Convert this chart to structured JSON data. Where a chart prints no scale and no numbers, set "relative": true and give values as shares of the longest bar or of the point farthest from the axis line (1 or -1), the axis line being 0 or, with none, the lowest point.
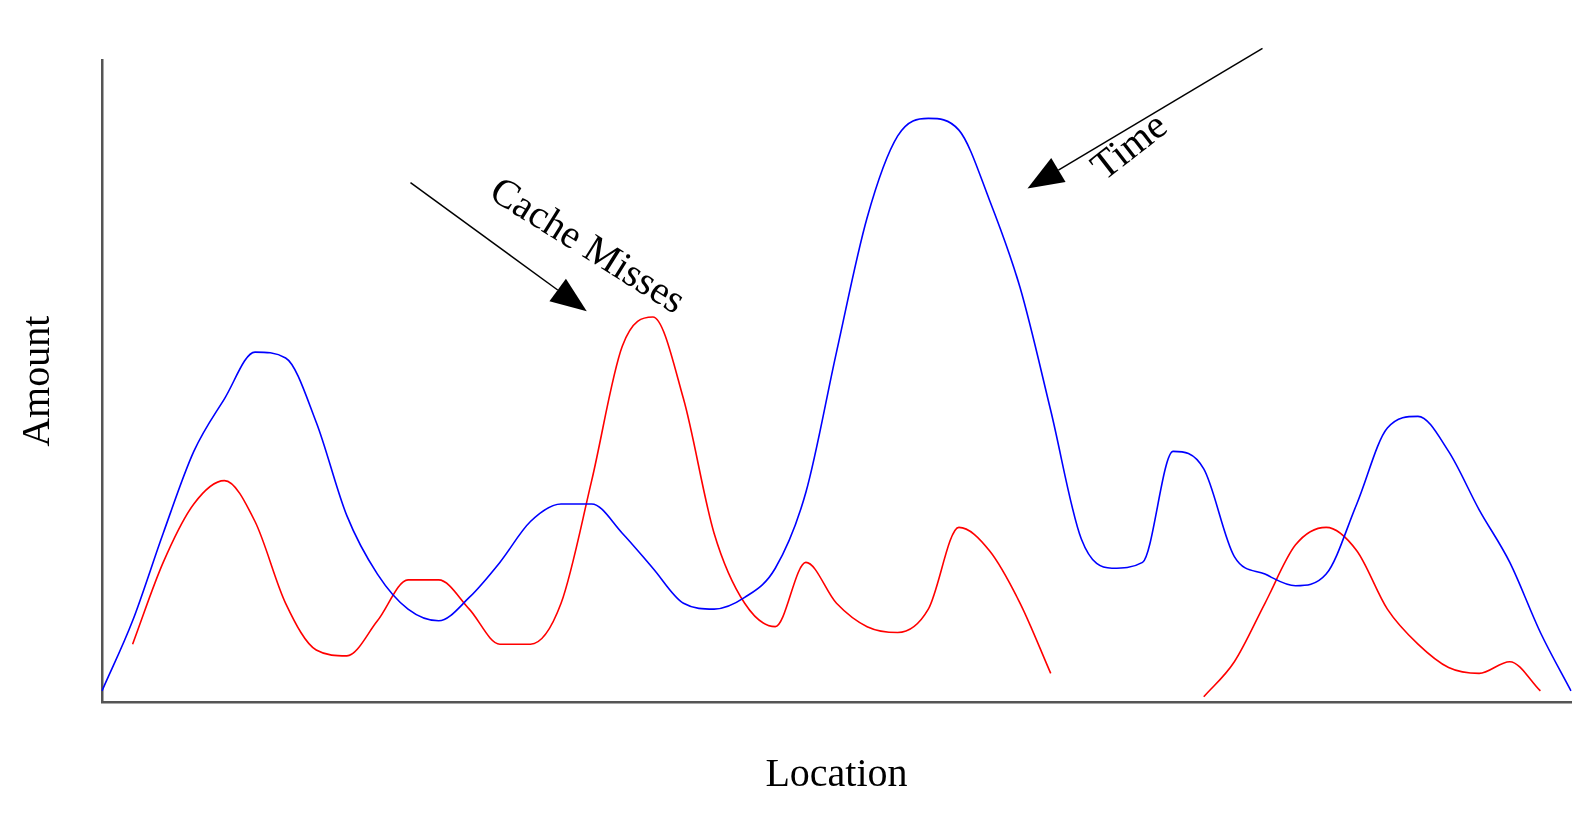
{
  "chart_data": {
    "type": "line",
    "relative": true,
    "xlabel": "Location",
    "ylabel": "Amount",
    "grid": false,
    "legend": false,
    "marker": "none",
    "line_style": "solid",
    "categories": [
      null,
      null,
      null,
      null,
      null,
      null,
      null,
      null,
      null,
      null,
      null,
      null,
      null,
      null,
      null,
      null,
      null,
      null,
      null,
      null,
      null,
      null,
      null,
      null,
      null,
      null,
      null,
      null,
      null,
      null,
      null,
      null,
      null,
      null,
      null,
      null,
      null,
      null,
      null,
      null,
      null,
      null,
      null,
      null,
      null,
      null,
      null,
      null,
      null
    ],
    "series": [
      {
        "name": "Time",
        "color": "#0000ff",
        "values": [
          0.02,
          0.14,
          0.29,
          0.43,
          0.52,
          0.6,
          0.59,
          0.48,
          0.32,
          0.22,
          0.16,
          0.14,
          0.18,
          0.24,
          0.31,
          0.34,
          0.34,
          0.29,
          0.23,
          0.17,
          0.16,
          0.18,
          0.23,
          0.36,
          0.6,
          0.83,
          0.97,
          1.0,
          0.98,
          0.86,
          0.71,
          0.5,
          0.28,
          0.23,
          0.24,
          0.43,
          0.4,
          0.25,
          0.22,
          0.2,
          0.22,
          0.34,
          0.47,
          0.49,
          0.43,
          0.33,
          0.24,
          0.12,
          0.02
        ]
      },
      {
        "name": "Cache Misses",
        "color": "#ff0000",
        "values": [
          null,
          0.1,
          0.24,
          0.34,
          0.38,
          0.31,
          0.17,
          0.09,
          0.08,
          0.14,
          0.21,
          0.21,
          0.16,
          0.1,
          0.1,
          0.17,
          0.38,
          0.61,
          0.66,
          0.52,
          0.29,
          0.17,
          0.13,
          0.24,
          0.17,
          0.13,
          0.12,
          0.16,
          0.3,
          0.26,
          0.17,
          0.05,
          null,
          null,
          null,
          null,
          0.01,
          0.07,
          0.17,
          0.27,
          0.3,
          0.26,
          0.16,
          0.1,
          0.06,
          0.05,
          0.07,
          0.02,
          null
        ]
      }
    ]
  }
}
